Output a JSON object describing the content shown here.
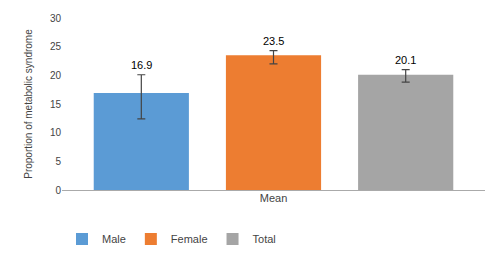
{
  "chart_data": {
    "type": "bar",
    "categories": [
      "Male",
      "Female",
      "Total"
    ],
    "values": [
      16.9,
      23.5,
      20.1
    ],
    "colors": [
      "#5B9BD5",
      "#ED7D31",
      "#A5A5A5"
    ],
    "error_upper": [
      3.2,
      0.8,
      0.9
    ],
    "error_lower": [
      4.5,
      1.5,
      1.3
    ],
    "xlabel": "Mean",
    "ylabel": "Proportion of metabolic syndrome",
    "ylim": [
      0,
      30
    ],
    "yticks": [
      0,
      5,
      10,
      15,
      20,
      25,
      30
    ],
    "grid": false,
    "legend": "lower left",
    "data_labels": true,
    "tick_labels": "y"
  }
}
